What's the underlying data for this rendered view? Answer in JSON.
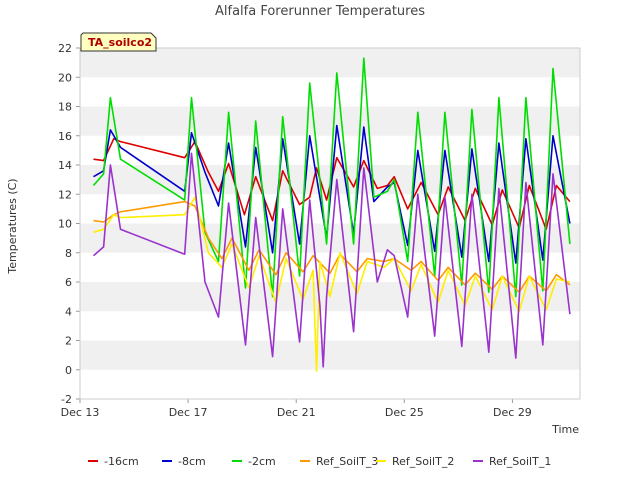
{
  "chart_data": {
    "type": "line",
    "title": "Alfalfa Forerunner Temperatures",
    "xlabel": "Time",
    "ylabel": "Temperatures (C)",
    "tag": "TA_soilco2",
    "ylim": [
      -2,
      22
    ],
    "yticks": [
      -2,
      0,
      2,
      4,
      6,
      8,
      10,
      12,
      14,
      16,
      18,
      20,
      22
    ],
    "xlim": [
      "2023-12-13",
      "2023-12-31 12:00"
    ],
    "xticks": [
      {
        "label": "Dec 13",
        "date": "2023-12-13"
      },
      {
        "label": "Dec 17",
        "date": "2023-12-17"
      },
      {
        "label": "Dec 21",
        "date": "2023-12-21"
      },
      {
        "label": "Dec 25",
        "date": "2023-12-25"
      },
      {
        "label": "Dec 29",
        "date": "2023-12-29"
      }
    ],
    "grid": "alternating horizontal bands",
    "legend_position": "bottom",
    "series": [
      {
        "name": "-16cm",
        "color": "#dd0000",
        "points": [
          [
            "2023-12-13 12:00",
            14.4
          ],
          [
            "2023-12-13 21:00",
            14.3
          ],
          [
            "2023-12-14 06:00",
            15.8
          ],
          [
            "2023-12-14 12:00",
            15.6
          ],
          [
            "2023-12-16 21:00",
            14.5
          ],
          [
            "2023-12-17 06:00",
            15.6
          ],
          [
            "2023-12-17 18:00",
            13.5
          ],
          [
            "2023-12-18 03:00",
            12.2
          ],
          [
            "2023-12-18 12:00",
            14.1
          ],
          [
            "2023-12-19 02:00",
            10.6
          ],
          [
            "2023-12-19 12:00",
            13.2
          ],
          [
            "2023-12-20 03:00",
            10.2
          ],
          [
            "2023-12-20 12:00",
            13.6
          ],
          [
            "2023-12-21 03:00",
            11.3
          ],
          [
            "2023-12-21 12:00",
            11.8
          ],
          [
            "2023-12-21 18:00",
            13.8
          ],
          [
            "2023-12-22 03:00",
            11.6
          ],
          [
            "2023-12-22 12:00",
            14.5
          ],
          [
            "2023-12-23 03:00",
            12.5
          ],
          [
            "2023-12-23 12:00",
            14.3
          ],
          [
            "2023-12-24 00:00",
            12.4
          ],
          [
            "2023-12-24 09:00",
            12.6
          ],
          [
            "2023-12-24 15:00",
            13.2
          ],
          [
            "2023-12-25 03:00",
            11.0
          ],
          [
            "2023-12-25 15:00",
            12.8
          ],
          [
            "2023-12-26 06:00",
            10.6
          ],
          [
            "2023-12-26 15:00",
            12.5
          ],
          [
            "2023-12-27 06:00",
            10.2
          ],
          [
            "2023-12-27 15:00",
            12.4
          ],
          [
            "2023-12-28 06:00",
            9.9
          ],
          [
            "2023-12-28 15:00",
            12.3
          ],
          [
            "2023-12-29 06:00",
            9.7
          ],
          [
            "2023-12-29 15:00",
            12.6
          ],
          [
            "2023-12-30 06:00",
            9.6
          ],
          [
            "2023-12-30 15:00",
            12.6
          ],
          [
            "2023-12-31 03:00",
            11.5
          ]
        ]
      },
      {
        "name": "-8cm",
        "color": "#0000cc",
        "points": [
          [
            "2023-12-13 12:00",
            13.2
          ],
          [
            "2023-12-13 21:00",
            13.6
          ],
          [
            "2023-12-14 03:00",
            16.4
          ],
          [
            "2023-12-14 12:00",
            15.2
          ],
          [
            "2023-12-16 21:00",
            12.2
          ],
          [
            "2023-12-17 03:00",
            16.2
          ],
          [
            "2023-12-17 15:00",
            13.5
          ],
          [
            "2023-12-18 03:00",
            11.2
          ],
          [
            "2023-12-18 12:00",
            15.5
          ],
          [
            "2023-12-19 03:00",
            8.4
          ],
          [
            "2023-12-19 12:00",
            15.2
          ],
          [
            "2023-12-20 03:00",
            8.0
          ],
          [
            "2023-12-20 12:00",
            15.8
          ],
          [
            "2023-12-21 03:00",
            8.6
          ],
          [
            "2023-12-21 12:00",
            16.0
          ],
          [
            "2023-12-22 03:00",
            9.0
          ],
          [
            "2023-12-22 12:00",
            16.7
          ],
          [
            "2023-12-23 03:00",
            9.3
          ],
          [
            "2023-12-23 12:00",
            16.6
          ],
          [
            "2023-12-23 21:00",
            11.5
          ],
          [
            "2023-12-24 09:00",
            12.5
          ],
          [
            "2023-12-24 15:00",
            12.8
          ],
          [
            "2023-12-25 03:00",
            8.5
          ],
          [
            "2023-12-25 12:00",
            15.0
          ],
          [
            "2023-12-26 03:00",
            8.1
          ],
          [
            "2023-12-26 12:00",
            15.0
          ],
          [
            "2023-12-27 03:00",
            7.7
          ],
          [
            "2023-12-27 12:00",
            15.1
          ],
          [
            "2023-12-28 03:00",
            7.4
          ],
          [
            "2023-12-28 12:00",
            15.5
          ],
          [
            "2023-12-29 03:00",
            7.3
          ],
          [
            "2023-12-29 12:00",
            15.8
          ],
          [
            "2023-12-30 03:00",
            7.5
          ],
          [
            "2023-12-30 12:00",
            16.0
          ],
          [
            "2023-12-31 03:00",
            10.0
          ]
        ]
      },
      {
        "name": "-2cm",
        "color": "#00dd00",
        "points": [
          [
            "2023-12-13 12:00",
            12.6
          ],
          [
            "2023-12-13 21:00",
            13.4
          ],
          [
            "2023-12-14 03:00",
            18.6
          ],
          [
            "2023-12-14 12:00",
            14.4
          ],
          [
            "2023-12-16 21:00",
            11.6
          ],
          [
            "2023-12-17 03:00",
            18.6
          ],
          [
            "2023-12-17 15:00",
            9.4
          ],
          [
            "2023-12-18 03:00",
            7.4
          ],
          [
            "2023-12-18 12:00",
            17.6
          ],
          [
            "2023-12-19 03:00",
            5.6
          ],
          [
            "2023-12-19 12:00",
            17.0
          ],
          [
            "2023-12-20 03:00",
            5.0
          ],
          [
            "2023-12-20 12:00",
            17.3
          ],
          [
            "2023-12-21 03:00",
            6.4
          ],
          [
            "2023-12-21 12:00",
            19.6
          ],
          [
            "2023-12-22 03:00",
            8.6
          ],
          [
            "2023-12-22 12:00",
            20.3
          ],
          [
            "2023-12-23 03:00",
            8.6
          ],
          [
            "2023-12-23 12:00",
            21.3
          ],
          [
            "2023-12-23 21:00",
            11.8
          ],
          [
            "2023-12-24 09:00",
            12.2
          ],
          [
            "2023-12-24 15:00",
            13.0
          ],
          [
            "2023-12-25 03:00",
            7.4
          ],
          [
            "2023-12-25 12:00",
            17.6
          ],
          [
            "2023-12-26 03:00",
            6.4
          ],
          [
            "2023-12-26 12:00",
            17.6
          ],
          [
            "2023-12-27 03:00",
            5.8
          ],
          [
            "2023-12-27 12:00",
            17.8
          ],
          [
            "2023-12-28 03:00",
            5.3
          ],
          [
            "2023-12-28 12:00",
            18.6
          ],
          [
            "2023-12-29 03:00",
            5.0
          ],
          [
            "2023-12-29 12:00",
            18.6
          ],
          [
            "2023-12-30 03:00",
            5.4
          ],
          [
            "2023-12-30 12:00",
            20.6
          ],
          [
            "2023-12-31 03:00",
            8.6
          ]
        ]
      },
      {
        "name": "Ref_SoilT_3",
        "color": "#ff9900",
        "points": [
          [
            "2023-12-13 12:00",
            10.2
          ],
          [
            "2023-12-13 21:00",
            10.1
          ],
          [
            "2023-12-14 06:00",
            10.6
          ],
          [
            "2023-12-14 12:00",
            10.8
          ],
          [
            "2023-12-16 21:00",
            11.5
          ],
          [
            "2023-12-17 06:00",
            11.2
          ],
          [
            "2023-12-17 18:00",
            9.0
          ],
          [
            "2023-12-18 06:00",
            7.6
          ],
          [
            "2023-12-18 15:00",
            9.0
          ],
          [
            "2023-12-19 06:00",
            6.8
          ],
          [
            "2023-12-19 15:00",
            8.2
          ],
          [
            "2023-12-20 06:00",
            6.5
          ],
          [
            "2023-12-20 15:00",
            8.0
          ],
          [
            "2023-12-21 06:00",
            6.7
          ],
          [
            "2023-12-21 15:00",
            7.8
          ],
          [
            "2023-12-22 06:00",
            6.6
          ],
          [
            "2023-12-22 15:00",
            7.9
          ],
          [
            "2023-12-23 06:00",
            6.7
          ],
          [
            "2023-12-23 15:00",
            7.6
          ],
          [
            "2023-12-24 06:00",
            7.4
          ],
          [
            "2023-12-24 15:00",
            7.6
          ],
          [
            "2023-12-25 06:00",
            6.8
          ],
          [
            "2023-12-25 15:00",
            7.4
          ],
          [
            "2023-12-26 06:00",
            6.1
          ],
          [
            "2023-12-26 15:00",
            7.0
          ],
          [
            "2023-12-27 06:00",
            5.8
          ],
          [
            "2023-12-27 15:00",
            6.6
          ],
          [
            "2023-12-28 06:00",
            5.5
          ],
          [
            "2023-12-28 15:00",
            6.4
          ],
          [
            "2023-12-29 06:00",
            5.3
          ],
          [
            "2023-12-29 15:00",
            6.4
          ],
          [
            "2023-12-30 06:00",
            5.4
          ],
          [
            "2023-12-30 15:00",
            6.5
          ],
          [
            "2023-12-31 03:00",
            5.8
          ]
        ]
      },
      {
        "name": "Ref_SoilT_2",
        "color": "#ffee00",
        "points": [
          [
            "2023-12-13 12:00",
            9.4
          ],
          [
            "2023-12-13 21:00",
            9.6
          ],
          [
            "2023-12-14 06:00",
            10.6
          ],
          [
            "2023-12-14 12:00",
            10.4
          ],
          [
            "2023-12-16 21:00",
            10.6
          ],
          [
            "2023-12-17 06:00",
            11.8
          ],
          [
            "2023-12-17 18:00",
            8.0
          ],
          [
            "2023-12-18 06:00",
            7.0
          ],
          [
            "2023-12-18 15:00",
            8.6
          ],
          [
            "2023-12-19 06:00",
            5.6
          ],
          [
            "2023-12-19 15:00",
            7.8
          ],
          [
            "2023-12-20 06:00",
            4.6
          ],
          [
            "2023-12-20 15:00",
            7.6
          ],
          [
            "2023-12-21 06:00",
            4.8
          ],
          [
            "2023-12-21 15:00",
            6.8
          ],
          [
            "2023-12-21 18:00",
            -0.1
          ],
          [
            "2023-12-21 21:00",
            7.4
          ],
          [
            "2023-12-22 06:00",
            5.0
          ],
          [
            "2023-12-22 15:00",
            8.0
          ],
          [
            "2023-12-23 06:00",
            5.2
          ],
          [
            "2023-12-23 15:00",
            7.4
          ],
          [
            "2023-12-24 06:00",
            7.0
          ],
          [
            "2023-12-24 15:00",
            7.6
          ],
          [
            "2023-12-25 06:00",
            5.4
          ],
          [
            "2023-12-25 15:00",
            7.2
          ],
          [
            "2023-12-26 06:00",
            4.6
          ],
          [
            "2023-12-26 15:00",
            6.8
          ],
          [
            "2023-12-27 06:00",
            4.4
          ],
          [
            "2023-12-27 15:00",
            6.4
          ],
          [
            "2023-12-28 06:00",
            4.1
          ],
          [
            "2023-12-28 15:00",
            6.4
          ],
          [
            "2023-12-29 06:00",
            4.0
          ],
          [
            "2023-12-29 15:00",
            6.4
          ],
          [
            "2023-12-30 06:00",
            4.1
          ],
          [
            "2023-12-30 15:00",
            6.2
          ],
          [
            "2023-12-31 03:00",
            6.0
          ]
        ]
      },
      {
        "name": "Ref_SoilT_1",
        "color": "#9933cc",
        "points": [
          [
            "2023-12-13 12:00",
            7.8
          ],
          [
            "2023-12-13 21:00",
            8.4
          ],
          [
            "2023-12-14 03:00",
            14.0
          ],
          [
            "2023-12-14 12:00",
            9.6
          ],
          [
            "2023-12-16 21:00",
            7.9
          ],
          [
            "2023-12-17 03:00",
            14.8
          ],
          [
            "2023-12-17 15:00",
            6.0
          ],
          [
            "2023-12-18 03:00",
            3.6
          ],
          [
            "2023-12-18 12:00",
            11.4
          ],
          [
            "2023-12-19 03:00",
            1.7
          ],
          [
            "2023-12-19 12:00",
            10.4
          ],
          [
            "2023-12-20 03:00",
            0.9
          ],
          [
            "2023-12-20 12:00",
            11.0
          ],
          [
            "2023-12-21 03:00",
            1.9
          ],
          [
            "2023-12-21 12:00",
            11.6
          ],
          [
            "2023-12-21 21:00",
            4.4
          ],
          [
            "2023-12-22 00:00",
            0.2
          ],
          [
            "2023-12-22 03:00",
            5.0
          ],
          [
            "2023-12-22 12:00",
            13.0
          ],
          [
            "2023-12-23 03:00",
            2.6
          ],
          [
            "2023-12-23 12:00",
            13.8
          ],
          [
            "2023-12-24 00:00",
            6.0
          ],
          [
            "2023-12-24 09:00",
            8.2
          ],
          [
            "2023-12-24 15:00",
            7.8
          ],
          [
            "2023-12-25 03:00",
            3.6
          ],
          [
            "2023-12-25 12:00",
            12.0
          ],
          [
            "2023-12-26 03:00",
            2.3
          ],
          [
            "2023-12-26 12:00",
            11.8
          ],
          [
            "2023-12-27 03:00",
            1.6
          ],
          [
            "2023-12-27 12:00",
            12.0
          ],
          [
            "2023-12-28 03:00",
            1.2
          ],
          [
            "2023-12-28 12:00",
            12.4
          ],
          [
            "2023-12-29 03:00",
            0.8
          ],
          [
            "2023-12-29 12:00",
            12.8
          ],
          [
            "2023-12-30 03:00",
            1.7
          ],
          [
            "2023-12-30 12:00",
            13.4
          ],
          [
            "2023-12-31 03:00",
            3.8
          ]
        ]
      }
    ]
  }
}
